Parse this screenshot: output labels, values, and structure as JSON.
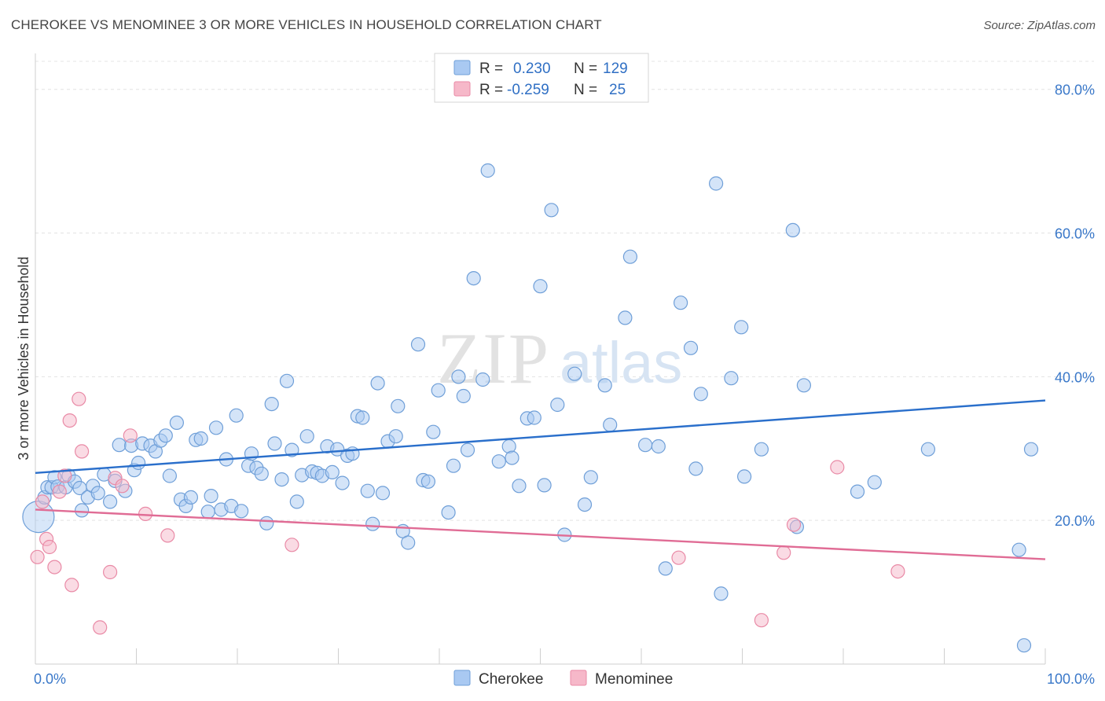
{
  "header": {
    "title": "CHEROKEE VS MENOMINEE 3 OR MORE VEHICLES IN HOUSEHOLD CORRELATION CHART",
    "source": "Source: ZipAtlas.com"
  },
  "watermark": {
    "part1": "ZIP",
    "part2": "atlas"
  },
  "legend": {
    "rows": [
      {
        "r_label": "R =",
        "r_value": "0.230",
        "n_label": "N =",
        "n_value": "129",
        "color": "#a9c9f2"
      },
      {
        "r_label": "R =",
        "r_value": "-0.259",
        "n_label": "N =",
        "n_value": "25",
        "color": "#f6b8c9"
      }
    ]
  },
  "chart_data": {
    "type": "scatter",
    "title": "CHEROKEE VS MENOMINEE 3 OR MORE VEHICLES IN HOUSEHOLD CORRELATION CHART",
    "xlabel": "",
    "ylabel": "3 or more Vehicles in Household",
    "xlim": [
      0,
      100
    ],
    "ylim": [
      0,
      85
    ],
    "x_tick_labels": [
      "0.0%",
      "100.0%"
    ],
    "y_ticks": [
      20,
      40,
      60,
      80
    ],
    "y_tick_labels": [
      "20.0%",
      "40.0%",
      "60.0%",
      "80.0%"
    ],
    "grid": true,
    "legend_position": "top-center",
    "series": [
      {
        "name": "Cherokee",
        "color": "#a9c9f2",
        "stroke": "#6f9fd8",
        "trend": {
          "x": [
            0,
            100
          ],
          "y": [
            26.6,
            36.7
          ],
          "color": "#2a6fcb"
        },
        "points": [
          [
            0.3,
            20.5
          ],
          [
            0.9,
            23.2
          ],
          [
            1.2,
            24.6
          ],
          [
            1.6,
            24.6
          ],
          [
            1.9,
            26.0
          ],
          [
            2.2,
            24.7
          ],
          [
            3.0,
            24.6
          ],
          [
            3.3,
            26.2
          ],
          [
            3.9,
            25.4
          ],
          [
            4.4,
            24.5
          ],
          [
            4.6,
            21.4
          ],
          [
            5.2,
            23.2
          ],
          [
            5.7,
            24.8
          ],
          [
            6.2,
            23.8
          ],
          [
            6.8,
            26.4
          ],
          [
            7.4,
            22.6
          ],
          [
            7.9,
            25.5
          ],
          [
            8.3,
            30.5
          ],
          [
            8.9,
            24.1
          ],
          [
            9.5,
            30.4
          ],
          [
            9.8,
            27.0
          ],
          [
            10.2,
            28.0
          ],
          [
            10.6,
            30.7
          ],
          [
            11.4,
            30.4
          ],
          [
            11.9,
            29.6
          ],
          [
            12.4,
            31.1
          ],
          [
            12.9,
            31.8
          ],
          [
            13.3,
            26.2
          ],
          [
            14.0,
            33.6
          ],
          [
            14.4,
            22.9
          ],
          [
            14.9,
            22.0
          ],
          [
            15.4,
            23.2
          ],
          [
            15.9,
            31.2
          ],
          [
            16.4,
            31.4
          ],
          [
            17.1,
            21.2
          ],
          [
            17.4,
            23.4
          ],
          [
            17.9,
            32.9
          ],
          [
            18.4,
            21.5
          ],
          [
            18.9,
            28.5
          ],
          [
            19.4,
            22.0
          ],
          [
            19.9,
            34.6
          ],
          [
            20.4,
            21.3
          ],
          [
            21.1,
            27.6
          ],
          [
            21.4,
            29.3
          ],
          [
            21.9,
            27.3
          ],
          [
            22.4,
            26.5
          ],
          [
            22.9,
            19.6
          ],
          [
            23.4,
            36.2
          ],
          [
            23.7,
            30.7
          ],
          [
            24.4,
            25.7
          ],
          [
            24.9,
            39.4
          ],
          [
            25.4,
            29.8
          ],
          [
            25.9,
            22.6
          ],
          [
            26.4,
            26.3
          ],
          [
            26.9,
            31.7
          ],
          [
            27.4,
            26.8
          ],
          [
            27.9,
            26.6
          ],
          [
            28.4,
            26.2
          ],
          [
            28.9,
            30.3
          ],
          [
            29.4,
            26.7
          ],
          [
            29.9,
            29.9
          ],
          [
            30.4,
            25.2
          ],
          [
            30.9,
            29.0
          ],
          [
            31.4,
            29.3
          ],
          [
            31.9,
            34.5
          ],
          [
            32.4,
            34.3
          ],
          [
            32.9,
            24.1
          ],
          [
            33.4,
            19.5
          ],
          [
            33.9,
            39.1
          ],
          [
            34.4,
            23.8
          ],
          [
            34.9,
            31.0
          ],
          [
            35.7,
            31.7
          ],
          [
            35.9,
            35.9
          ],
          [
            36.4,
            18.5
          ],
          [
            36.9,
            16.9
          ],
          [
            37.9,
            44.5
          ],
          [
            38.4,
            25.6
          ],
          [
            38.9,
            25.4
          ],
          [
            39.4,
            32.3
          ],
          [
            39.9,
            38.1
          ],
          [
            40.9,
            21.1
          ],
          [
            41.4,
            27.6
          ],
          [
            41.9,
            40.0
          ],
          [
            42.4,
            37.3
          ],
          [
            42.8,
            29.8
          ],
          [
            43.4,
            53.7
          ],
          [
            44.3,
            39.6
          ],
          [
            44.8,
            68.7
          ],
          [
            45.9,
            28.2
          ],
          [
            46.9,
            30.3
          ],
          [
            47.2,
            28.7
          ],
          [
            47.9,
            24.8
          ],
          [
            48.7,
            34.2
          ],
          [
            49.4,
            34.3
          ],
          [
            50.0,
            52.6
          ],
          [
            50.4,
            24.9
          ],
          [
            51.1,
            63.2
          ],
          [
            51.7,
            36.1
          ],
          [
            52.4,
            18.0
          ],
          [
            53.4,
            40.4
          ],
          [
            54.4,
            22.2
          ],
          [
            55.0,
            26.0
          ],
          [
            56.4,
            38.8
          ],
          [
            56.9,
            33.3
          ],
          [
            58.4,
            48.2
          ],
          [
            58.9,
            56.7
          ],
          [
            60.4,
            30.5
          ],
          [
            61.7,
            30.3
          ],
          [
            62.4,
            13.3
          ],
          [
            63.9,
            50.3
          ],
          [
            64.9,
            44.0
          ],
          [
            65.4,
            27.2
          ],
          [
            65.9,
            37.6
          ],
          [
            67.4,
            66.9
          ],
          [
            67.9,
            9.8
          ],
          [
            68.9,
            39.8
          ],
          [
            69.9,
            46.9
          ],
          [
            70.2,
            26.1
          ],
          [
            71.9,
            29.9
          ],
          [
            75.0,
            60.4
          ],
          [
            75.4,
            19.1
          ],
          [
            76.1,
            38.8
          ],
          [
            81.4,
            24.0
          ],
          [
            83.1,
            25.3
          ],
          [
            88.4,
            29.9
          ],
          [
            97.4,
            15.9
          ],
          [
            97.9,
            2.6
          ],
          [
            98.6,
            29.9
          ]
        ]
      },
      {
        "name": "Menominee",
        "color": "#f6b8c9",
        "stroke": "#e98aa6",
        "trend": {
          "x": [
            0,
            100
          ],
          "y": [
            21.5,
            14.6
          ],
          "color": "#e06c95"
        },
        "points": [
          [
            0.2,
            14.9
          ],
          [
            0.7,
            22.6
          ],
          [
            1.1,
            17.4
          ],
          [
            1.4,
            16.3
          ],
          [
            1.9,
            13.5
          ],
          [
            2.4,
            24.0
          ],
          [
            2.9,
            26.2
          ],
          [
            3.4,
            33.9
          ],
          [
            3.6,
            11.0
          ],
          [
            4.3,
            36.9
          ],
          [
            4.6,
            29.6
          ],
          [
            6.4,
            5.1
          ],
          [
            7.4,
            12.8
          ],
          [
            7.9,
            25.9
          ],
          [
            8.6,
            24.8
          ],
          [
            9.4,
            31.8
          ],
          [
            10.9,
            20.9
          ],
          [
            13.1,
            17.9
          ],
          [
            25.4,
            16.6
          ],
          [
            63.7,
            14.8
          ],
          [
            71.9,
            6.1
          ],
          [
            74.1,
            15.5
          ],
          [
            75.1,
            19.4
          ],
          [
            79.4,
            27.4
          ],
          [
            85.4,
            12.9
          ]
        ]
      }
    ]
  }
}
